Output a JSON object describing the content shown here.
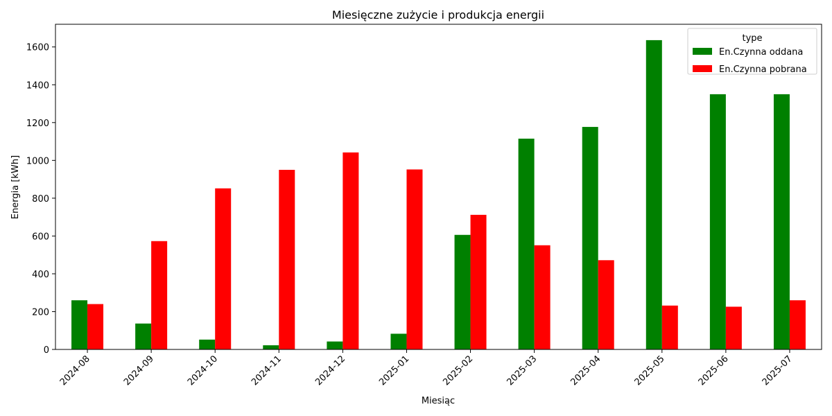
{
  "chart_data": {
    "type": "bar",
    "title": "Miesięczne zużycie i produkcja energii",
    "xlabel": "Miesiąc",
    "ylabel": "Energia [kWh]",
    "ylim": [
      0,
      1720
    ],
    "yticks": [
      0,
      200,
      400,
      600,
      800,
      1000,
      1200,
      1400,
      1600
    ],
    "ytick_labels": [
      "0",
      "200",
      "400",
      "600",
      "800",
      "1000",
      "1200",
      "1400",
      "1600"
    ],
    "categories": [
      "2024-08",
      "2024-09",
      "2024-10",
      "2024-11",
      "2024-12",
      "2025-01",
      "2025-02",
      "2025-03",
      "2025-04",
      "2025-05",
      "2025-06",
      "2025-07"
    ],
    "series": [
      {
        "name": "En.Czynna oddana",
        "color": "#008000",
        "values": [
          260,
          137,
          52,
          22,
          42,
          83,
          606,
          1115,
          1177,
          1636,
          1350,
          1350
        ]
      },
      {
        "name": "En.Czynna pobrana",
        "color": "#ff0000",
        "values": [
          240,
          573,
          852,
          950,
          1042,
          952,
          712,
          551,
          472,
          232,
          226,
          260
        ]
      }
    ],
    "legend": {
      "title": "type",
      "position": "top-right"
    },
    "grid": false
  }
}
